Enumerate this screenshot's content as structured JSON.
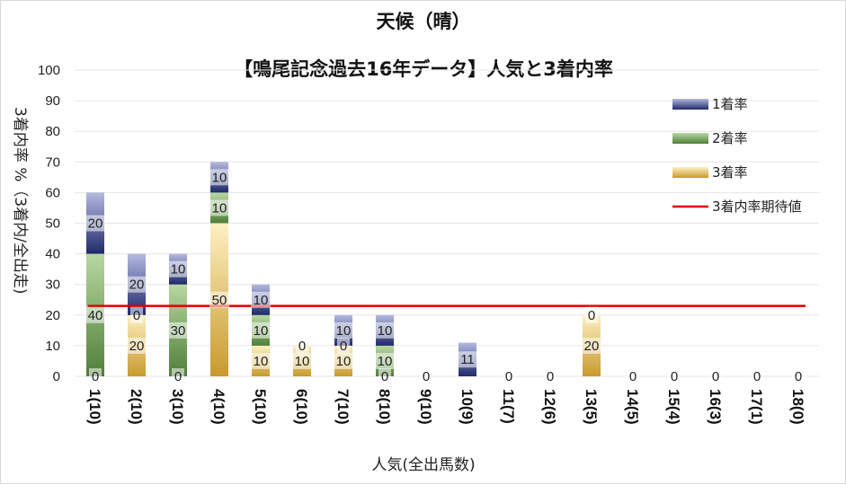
{
  "chart_data": {
    "type": "bar",
    "stacked": true,
    "title": "天候（晴）",
    "subtitle": "【鳴尾記念過去16年データ】人気と3着内率",
    "xlabel": "人気(全出馬数)",
    "ylabel": "3着内率 %（3着内/全出走)",
    "ylim": [
      0,
      100
    ],
    "yticks": [
      0,
      10,
      20,
      30,
      40,
      50,
      60,
      70,
      80,
      90,
      100
    ],
    "categories": [
      "1(10)",
      "2(10)",
      "3(10)",
      "4(10)",
      "5(10)",
      "6(10)",
      "7(10)",
      "8(10)",
      "9(10)",
      "10(9)",
      "11(7)",
      "12(6)",
      "13(5)",
      "14(5)",
      "15(4)",
      "16(3)",
      "17(1)",
      "18(0)"
    ],
    "series": [
      {
        "name": "3着率",
        "values": [
          0,
          20,
          0,
          50,
          10,
          10,
          10,
          0,
          0,
          0,
          0,
          0,
          20,
          0,
          0,
          0,
          0,
          0
        ],
        "color": "#d9b35a"
      },
      {
        "name": "2着率",
        "values": [
          40,
          0,
          30,
          10,
          10,
          0,
          0,
          10,
          0,
          0,
          0,
          0,
          0,
          0,
          0,
          0,
          0,
          0
        ],
        "color": "#7aab5a"
      },
      {
        "name": "1着率",
        "values": [
          20,
          20,
          10,
          10,
          10,
          0,
          10,
          10,
          0,
          11,
          0,
          0,
          0,
          0,
          0,
          0,
          0,
          0
        ],
        "color": "#8a93c9"
      }
    ],
    "data_labels": {
      "3着率": [
        "0",
        "20",
        "0",
        "50",
        "10",
        "10",
        "10",
        "0",
        "0",
        "",
        "0",
        "0",
        "20",
        "0",
        "0",
        "0",
        "0",
        "0"
      ],
      "2着率": [
        "40",
        "0",
        "30",
        "10",
        "10",
        "0",
        "0",
        "10",
        "",
        "",
        "",
        "",
        "0",
        "",
        "",
        "",
        "",
        ""
      ],
      "1着率": [
        "20",
        "20",
        "10",
        "10",
        "10",
        "",
        "10",
        "10",
        "",
        "11",
        "",
        "",
        "",
        "",
        "",
        "",
        "",
        ""
      ]
    },
    "reference_line": {
      "name": "3着内率期待値",
      "value": 23,
      "color": "#e00000"
    },
    "legend": {
      "position": "right",
      "items": [
        "1着率",
        "2着率",
        "3着率",
        "3着内率期待値"
      ]
    },
    "grid": true
  }
}
